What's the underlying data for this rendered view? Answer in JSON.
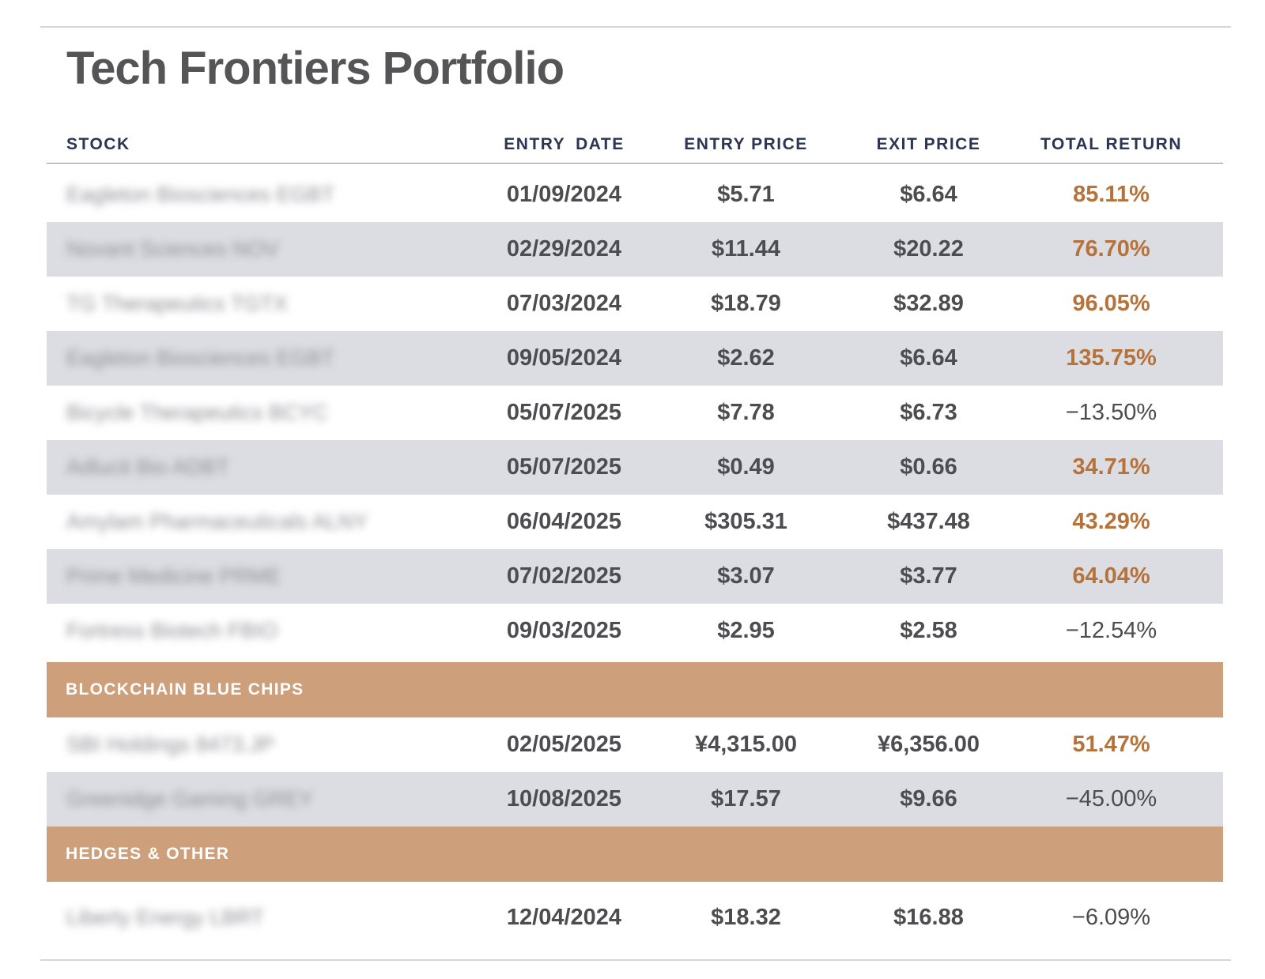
{
  "title": "Tech Frontiers Portfolio",
  "columns": {
    "stock": "STOCK",
    "entry_date": "ENTRY DATE",
    "entry_price": "ENTRY PRICE",
    "exit_price": "EXIT PRICE",
    "total_return": "TOTAL RETURN"
  },
  "colors": {
    "positive_return": "#b5733b",
    "section_band": "#cda07b",
    "shaded_row": "#dcdde2",
    "header_text": "#2c3553"
  },
  "main_rows": [
    {
      "stock": "Eagleton Biosciences EGBT",
      "entry_date": "01/09/2024",
      "entry_price": "$5.71",
      "exit_price": "$6.64",
      "total_return": "85.11%",
      "direction": "positive"
    },
    {
      "stock": "Novant Sciences NOV",
      "entry_date": "02/29/2024",
      "entry_price": "$11.44",
      "exit_price": "$20.22",
      "total_return": "76.70%",
      "direction": "positive"
    },
    {
      "stock": "TG Therapeutics TGTX",
      "entry_date": "07/03/2024",
      "entry_price": "$18.79",
      "exit_price": "$32.89",
      "total_return": "96.05%",
      "direction": "positive"
    },
    {
      "stock": "Eagleton Biosciences EGBT",
      "entry_date": "09/05/2024",
      "entry_price": "$2.62",
      "exit_price": "$6.64",
      "total_return": "135.75%",
      "direction": "positive"
    },
    {
      "stock": "Bicycle Therapeutics BCYC",
      "entry_date": "05/07/2025",
      "entry_price": "$7.78",
      "exit_price": "$6.73",
      "total_return": "−13.50%",
      "direction": "negative"
    },
    {
      "stock": "Adlucit Bio ADBT",
      "entry_date": "05/07/2025",
      "entry_price": "$0.49",
      "exit_price": "$0.66",
      "total_return": "34.71%",
      "direction": "positive"
    },
    {
      "stock": "Amylam Pharmaceuticals ALNY",
      "entry_date": "06/04/2025",
      "entry_price": "$305.31",
      "exit_price": "$437.48",
      "total_return": "43.29%",
      "direction": "positive"
    },
    {
      "stock": "Prime Medicine PRME",
      "entry_date": "07/02/2025",
      "entry_price": "$3.07",
      "exit_price": "$3.77",
      "total_return": "64.04%",
      "direction": "positive"
    },
    {
      "stock": "Fortress Biotech FBIO",
      "entry_date": "09/03/2025",
      "entry_price": "$2.95",
      "exit_price": "$2.58",
      "total_return": "−12.54%",
      "direction": "negative"
    }
  ],
  "sections": [
    {
      "label": "BLOCKCHAIN BLUE CHIPS",
      "rows": [
        {
          "stock": "SBI Holdings 8473.JP",
          "entry_date": "02/05/2025",
          "entry_price": "¥4,315.00",
          "exit_price": "¥6,356.00",
          "total_return": "51.47%",
          "direction": "positive"
        },
        {
          "stock": "Greenidge Gaming GREY",
          "entry_date": "10/08/2025",
          "entry_price": "$17.57",
          "exit_price": "$9.66",
          "total_return": "−45.00%",
          "direction": "negative"
        }
      ]
    },
    {
      "label": "HEDGES & OTHER",
      "rows": [
        {
          "stock": "Liberty Energy LBRT",
          "entry_date": "12/04/2024",
          "entry_price": "$18.32",
          "exit_price": "$16.88",
          "total_return": "−6.09%",
          "direction": "negative"
        }
      ]
    }
  ]
}
